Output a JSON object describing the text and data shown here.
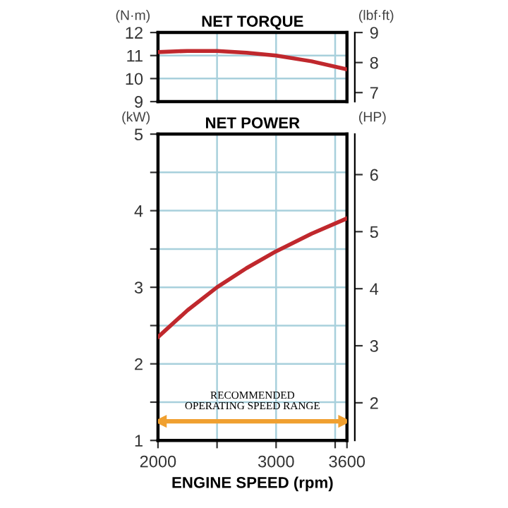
{
  "chart_data": [
    {
      "type": "line",
      "title": "NET TORQUE",
      "ylabel": "(N·m)",
      "y2label": "(lbf·ft)",
      "x": [
        2000,
        2250,
        2500,
        2750,
        3000,
        3300,
        3600
      ],
      "series": [
        {
          "color": "#c0282d",
          "values": [
            11.15,
            11.2,
            11.2,
            11.12,
            11.0,
            10.75,
            10.4
          ]
        }
      ],
      "xlim": [
        2000,
        3600
      ],
      "xticks": [
        {
          "value": 2500,
          "label": null
        },
        {
          "value": 3000,
          "label": null
        },
        {
          "value": 3500,
          "label": null
        }
      ],
      "ylim": [
        9,
        12
      ],
      "yticks": [
        9,
        10,
        11,
        12
      ],
      "y2lim": [
        6.7,
        9.0
      ],
      "y2ticks": [
        7,
        8,
        9
      ],
      "grid": true,
      "tick_labels": "y",
      "marker": "none",
      "line_style": "solid"
    },
    {
      "type": "line",
      "title": "NET POWER",
      "xlabel": "ENGINE SPEED (rpm)",
      "ylabel": "(kW)",
      "y2label": "(HP)",
      "x": [
        2000,
        2250,
        2500,
        2750,
        3000,
        3300,
        3600
      ],
      "series": [
        {
          "color": "#c0282d",
          "values": [
            2.35,
            2.7,
            3.0,
            3.25,
            3.47,
            3.7,
            3.9
          ]
        }
      ],
      "xlim": [
        2000,
        3600
      ],
      "xticks": [
        2000,
        {
          "value": 2500,
          "label": null
        },
        3000,
        {
          "value": 3500,
          "label": null
        },
        3600
      ],
      "ylim": [
        1,
        5
      ],
      "yticks": [
        1,
        {
          "value": 1.5,
          "label": null
        },
        2,
        {
          "value": 2.5,
          "label": null
        },
        3,
        {
          "value": 3.5,
          "label": null
        },
        4,
        {
          "value": 4.5,
          "label": null
        },
        5
      ],
      "y2lim": [
        1.34,
        6.71
      ],
      "y2ticks": [
        2,
        3,
        4,
        5,
        6
      ],
      "ref_lines": [
        {
          "axis": "y",
          "value": 1.25,
          "label": "RECOMMENDED\nOPERATING SPEED RANGE",
          "color": "#f0a030"
        }
      ],
      "grid": true,
      "marker": "none",
      "line_style": "solid"
    }
  ]
}
